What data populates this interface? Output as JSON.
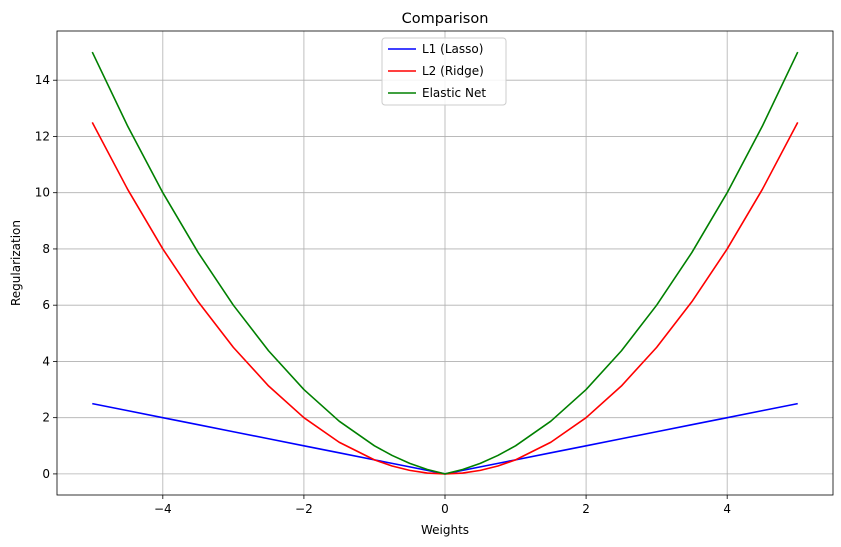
{
  "chart_data": {
    "type": "line",
    "title": "Comparison",
    "xlabel": "Weights",
    "ylabel": "Regularization",
    "xlim": [
      -5.5,
      5.5
    ],
    "ylim": [
      -0.75,
      15.75
    ],
    "xticks": [
      -4,
      -2,
      0,
      2,
      4
    ],
    "xtick_labels": [
      "−4",
      "−2",
      "0",
      "2",
      "4"
    ],
    "yticks": [
      0,
      2,
      4,
      6,
      8,
      10,
      12,
      14
    ],
    "ytick_labels": [
      "0",
      "2",
      "4",
      "6",
      "8",
      "10",
      "12",
      "14"
    ],
    "grid": true,
    "legend_position": "upper-center",
    "x": [
      -5,
      -4.5,
      -4,
      -3.5,
      -3,
      -2.5,
      -2,
      -1.5,
      -1,
      -0.75,
      -0.5,
      -0.25,
      0,
      0.25,
      0.5,
      0.75,
      1,
      1.5,
      2,
      2.5,
      3,
      3.5,
      4,
      4.5,
      5
    ],
    "series": [
      {
        "name": "L1 (Lasso)",
        "color": "#0000ff",
        "values": [
          2.5,
          2.25,
          2,
          1.75,
          1.5,
          1.25,
          1,
          0.75,
          0.5,
          0.375,
          0.25,
          0.125,
          0,
          0.125,
          0.25,
          0.375,
          0.5,
          0.75,
          1,
          1.25,
          1.5,
          1.75,
          2,
          2.25,
          2.5
        ]
      },
      {
        "name": "L2 (Ridge)",
        "color": "#ff0000",
        "values": [
          12.5,
          10.125,
          8,
          6.125,
          4.5,
          3.125,
          2,
          1.125,
          0.5,
          0.28125,
          0.125,
          0.03125,
          0,
          0.03125,
          0.125,
          0.28125,
          0.5,
          1.125,
          2,
          3.125,
          4.5,
          6.125,
          8,
          10.125,
          12.5
        ]
      },
      {
        "name": "Elastic Net",
        "color": "#008000",
        "values": [
          15,
          12.375,
          10,
          7.875,
          6,
          4.375,
          3,
          1.875,
          1,
          0.65625,
          0.375,
          0.15625,
          0,
          0.15625,
          0.375,
          0.65625,
          1,
          1.875,
          3,
          4.375,
          6,
          7.875,
          10,
          12.375,
          15
        ]
      }
    ]
  }
}
